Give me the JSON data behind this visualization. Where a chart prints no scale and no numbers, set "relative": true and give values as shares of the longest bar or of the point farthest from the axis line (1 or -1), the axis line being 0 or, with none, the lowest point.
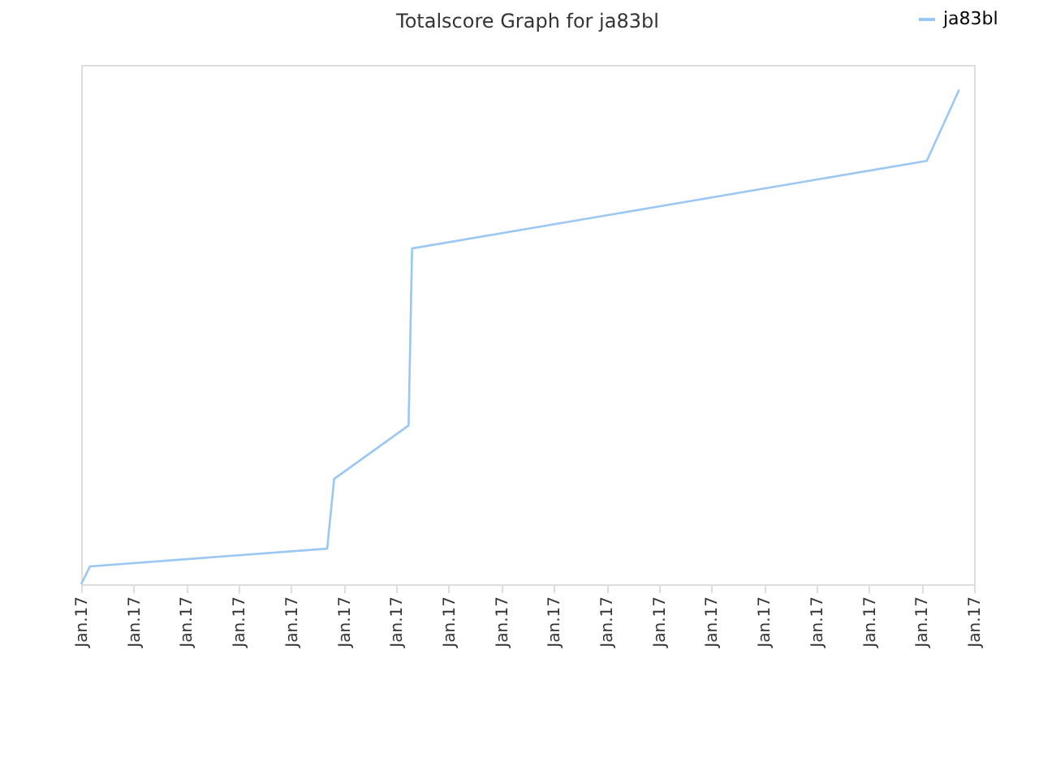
{
  "chart_data": {
    "type": "line",
    "title": "Totalscore Graph for ja83bl",
    "relative": true,
    "x": [
      "--01-17T00:00",
      "--01-17T00:10",
      "--01-17T04:41",
      "--01-17T04:49",
      "--01-17T06:14",
      "--01-17T06:18",
      "--01-17T16:06",
      "--01-17T16:43"
    ],
    "xlim": [
      "--01-17T00:00",
      "--01-17T17:00"
    ],
    "xticks": [
      {
        "value": "--01-17T00:00",
        "label": "Jan.17"
      },
      {
        "value": "--01-17T01:00",
        "label": "Jan.17"
      },
      {
        "value": "--01-17T02:00",
        "label": "Jan.17"
      },
      {
        "value": "--01-17T03:00",
        "label": "Jan.17"
      },
      {
        "value": "--01-17T04:00",
        "label": "Jan.17"
      },
      {
        "value": "--01-17T05:00",
        "label": "Jan.17"
      },
      {
        "value": "--01-17T06:00",
        "label": "Jan.17"
      },
      {
        "value": "--01-17T07:00",
        "label": "Jan.17"
      },
      {
        "value": "--01-17T08:00",
        "label": "Jan.17"
      },
      {
        "value": "--01-17T09:00",
        "label": "Jan.17"
      },
      {
        "value": "--01-17T10:00",
        "label": "Jan.17"
      },
      {
        "value": "--01-17T11:00",
        "label": "Jan.17"
      },
      {
        "value": "--01-17T12:00",
        "label": "Jan.17"
      },
      {
        "value": "--01-17T13:00",
        "label": "Jan.17"
      },
      {
        "value": "--01-17T14:00",
        "label": "Jan.17"
      },
      {
        "value": "--01-17T15:00",
        "label": "Jan.17"
      },
      {
        "value": "--01-17T16:00",
        "label": "Jan.17"
      },
      {
        "value": "--01-17T17:00",
        "label": "Jan.17"
      }
    ],
    "series": [
      {
        "name": "ja83bl",
        "color": "#9ac7f3",
        "values": [
          0,
          0.036,
          0.072,
          0.213,
          0.321,
          0.679,
          0.856,
          1
        ]
      }
    ],
    "legend": "top right",
    "marker": "none",
    "line_style": "solid"
  }
}
